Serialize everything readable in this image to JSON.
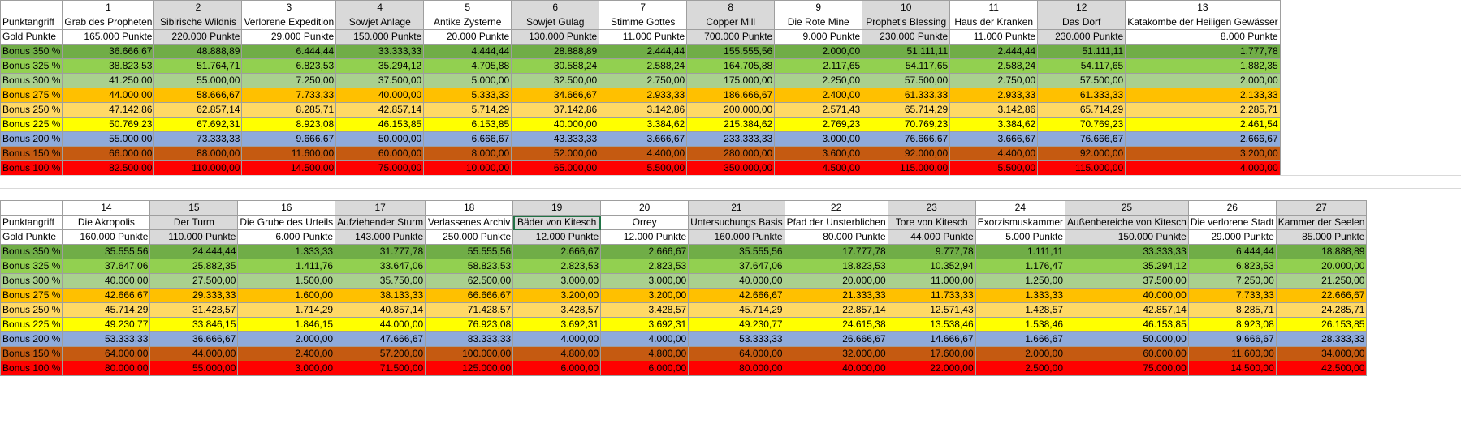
{
  "bonus_colors": {
    "350": "#70ad47",
    "325": "#92d050",
    "300": "#a9d08e",
    "275": "#ffc000",
    "250": "#ffd966",
    "225": "#ffff00",
    "200": "#8eaadb",
    "150": "#c55a11",
    "100": "#ff0000"
  },
  "row_labels": {
    "attack": "Punktangriff",
    "gold": "Gold Punkte",
    "bonuses": [
      "Bonus 350 %",
      "Bonus 325 %",
      "Bonus 300 %",
      "Bonus 275 %",
      "Bonus 250 %",
      "Bonus 225 %",
      "Bonus 200 %",
      "Bonus 150 %",
      "Bonus 100 %"
    ]
  },
  "tables": [
    {
      "columns": [
        {
          "num": "1",
          "name": "Grab des Propheten",
          "gold": "165.000 Punkte",
          "values": [
            "36.666,67",
            "38.823,53",
            "41.250,00",
            "44.000,00",
            "47.142,86",
            "50.769,23",
            "55.000,00",
            "66.000,00",
            "82.500,00"
          ]
        },
        {
          "num": "2",
          "name": "Sibirische Wildnis",
          "gold": "220.000 Punkte",
          "values": [
            "48.888,89",
            "51.764,71",
            "55.000,00",
            "58.666,67",
            "62.857,14",
            "67.692,31",
            "73.333,33",
            "88.000,00",
            "110.000,00"
          ]
        },
        {
          "num": "3",
          "name": "Verlorene Expedition",
          "gold": "29.000 Punkte",
          "values": [
            "6.444,44",
            "6.823,53",
            "7.250,00",
            "7.733,33",
            "8.285,71",
            "8.923,08",
            "9.666,67",
            "11.600,00",
            "14.500,00"
          ]
        },
        {
          "num": "4",
          "name": "Sowjet Anlage",
          "gold": "150.000 Punkte",
          "values": [
            "33.333,33",
            "35.294,12",
            "37.500,00",
            "40.000,00",
            "42.857,14",
            "46.153,85",
            "50.000,00",
            "60.000,00",
            "75.000,00"
          ]
        },
        {
          "num": "5",
          "name": "Antike Zysterne",
          "gold": "20.000 Punkte",
          "values": [
            "4.444,44",
            "4.705,88",
            "5.000,00",
            "5.333,33",
            "5.714,29",
            "6.153,85",
            "6.666,67",
            "8.000,00",
            "10.000,00"
          ]
        },
        {
          "num": "6",
          "name": "Sowjet Gulag",
          "gold": "130.000 Punkte",
          "values": [
            "28.888,89",
            "30.588,24",
            "32.500,00",
            "34.666,67",
            "37.142,86",
            "40.000,00",
            "43.333,33",
            "52.000,00",
            "65.000,00"
          ]
        },
        {
          "num": "7",
          "name": "Stimme Gottes",
          "gold": "11.000 Punkte",
          "values": [
            "2.444,44",
            "2.588,24",
            "2.750,00",
            "2.933,33",
            "3.142,86",
            "3.384,62",
            "3.666,67",
            "4.400,00",
            "5.500,00"
          ]
        },
        {
          "num": "8",
          "name": "Copper Mill",
          "gold": "700.000 Punkte",
          "values": [
            "155.555,56",
            "164.705,88",
            "175.000,00",
            "186.666,67",
            "200.000,00",
            "215.384,62",
            "233.333,33",
            "280.000,00",
            "350.000,00"
          ]
        },
        {
          "num": "9",
          "name": "Die Rote Mine",
          "gold": "9.000 Punkte",
          "values": [
            "2.000,00",
            "2.117,65",
            "2.250,00",
            "2.400,00",
            "2.571,43",
            "2.769,23",
            "3.000,00",
            "3.600,00",
            "4.500,00"
          ]
        },
        {
          "num": "10",
          "name": "Prophet's Blessing",
          "gold": "230.000 Punkte",
          "values": [
            "51.111,11",
            "54.117,65",
            "57.500,00",
            "61.333,33",
            "65.714,29",
            "70.769,23",
            "76.666,67",
            "92.000,00",
            "115.000,00"
          ]
        },
        {
          "num": "11",
          "name": "Haus der Kranken",
          "gold": "11.000 Punkte",
          "values": [
            "2.444,44",
            "2.588,24",
            "2.750,00",
            "2.933,33",
            "3.142,86",
            "3.384,62",
            "3.666,67",
            "4.400,00",
            "5.500,00"
          ]
        },
        {
          "num": "12",
          "name": "Das Dorf",
          "gold": "230.000 Punkte",
          "values": [
            "51.111,11",
            "54.117,65",
            "57.500,00",
            "61.333,33",
            "65.714,29",
            "70.769,23",
            "76.666,67",
            "92.000,00",
            "115.000,00"
          ]
        },
        {
          "num": "13",
          "name": "Katakombe der Heiligen Gewässer",
          "gold": "8.000 Punkte",
          "values": [
            "1.777,78",
            "1.882,35",
            "2.000,00",
            "2.133,33",
            "2.285,71",
            "2.461,54",
            "2.666,67",
            "3.200,00",
            "4.000,00"
          ]
        }
      ]
    },
    {
      "columns": [
        {
          "num": "14",
          "name": "Die Akropolis",
          "gold": "160.000 Punkte",
          "values": [
            "35.555,56",
            "37.647,06",
            "40.000,00",
            "42.666,67",
            "45.714,29",
            "49.230,77",
            "53.333,33",
            "64.000,00",
            "80.000,00"
          ]
        },
        {
          "num": "15",
          "name": "Der Turm",
          "gold": "110.000 Punkte",
          "values": [
            "24.444,44",
            "25.882,35",
            "27.500,00",
            "29.333,33",
            "31.428,57",
            "33.846,15",
            "36.666,67",
            "44.000,00",
            "55.000,00"
          ]
        },
        {
          "num": "16",
          "name": "Die Grube des Urteils",
          "gold": "6.000 Punkte",
          "values": [
            "1.333,33",
            "1.411,76",
            "1.500,00",
            "1.600,00",
            "1.714,29",
            "1.846,15",
            "2.000,00",
            "2.400,00",
            "3.000,00"
          ]
        },
        {
          "num": "17",
          "name": "Aufziehender Sturm",
          "gold": "143.000 Punkte",
          "values": [
            "31.777,78",
            "33.647,06",
            "35.750,00",
            "38.133,33",
            "40.857,14",
            "44.000,00",
            "47.666,67",
            "57.200,00",
            "71.500,00"
          ]
        },
        {
          "num": "18",
          "name": "Verlassenes Archiv",
          "gold": "250.000 Punkte",
          "values": [
            "55.555,56",
            "58.823,53",
            "62.500,00",
            "66.666,67",
            "71.428,57",
            "76.923,08",
            "83.333,33",
            "100.000,00",
            "125.000,00"
          ]
        },
        {
          "num": "19",
          "name": "Bäder von Kitesch",
          "gold": "12.000 Punkte",
          "values": [
            "2.666,67",
            "2.823,53",
            "3.000,00",
            "3.200,00",
            "3.428,57",
            "3.692,31",
            "4.000,00",
            "4.800,00",
            "6.000,00"
          ]
        },
        {
          "num": "20",
          "name": "Orrey",
          "gold": "12.000 Punkte",
          "values": [
            "2.666,67",
            "2.823,53",
            "3.000,00",
            "3.200,00",
            "3.428,57",
            "3.692,31",
            "4.000,00",
            "4.800,00",
            "6.000,00"
          ]
        },
        {
          "num": "21",
          "name": "Untersuchungs Basis",
          "gold": "160.000 Punkte",
          "values": [
            "35.555,56",
            "37.647,06",
            "40.000,00",
            "42.666,67",
            "45.714,29",
            "49.230,77",
            "53.333,33",
            "64.000,00",
            "80.000,00"
          ]
        },
        {
          "num": "22",
          "name": "Pfad der Unsterblichen",
          "gold": "80.000 Punkte",
          "values": [
            "17.777,78",
            "18.823,53",
            "20.000,00",
            "21.333,33",
            "22.857,14",
            "24.615,38",
            "26.666,67",
            "32.000,00",
            "40.000,00"
          ]
        },
        {
          "num": "23",
          "name": "Tore von Kitesch",
          "gold": "44.000 Punkte",
          "values": [
            "9.777,78",
            "10.352,94",
            "11.000,00",
            "11.733,33",
            "12.571,43",
            "13.538,46",
            "14.666,67",
            "17.600,00",
            "22.000,00"
          ]
        },
        {
          "num": "24",
          "name": "Exorzismuskammer",
          "gold": "5.000 Punkte",
          "values": [
            "1.111,11",
            "1.176,47",
            "1.250,00",
            "1.333,33",
            "1.428,57",
            "1.538,46",
            "1.666,67",
            "2.000,00",
            "2.500,00"
          ]
        },
        {
          "num": "25",
          "name": "Außenbereiche von Kitesch",
          "gold": "150.000 Punkte",
          "values": [
            "33.333,33",
            "35.294,12",
            "37.500,00",
            "40.000,00",
            "42.857,14",
            "46.153,85",
            "50.000,00",
            "60.000,00",
            "75.000,00"
          ]
        },
        {
          "num": "26",
          "name": "Die verlorene Stadt",
          "gold": "29.000 Punkte",
          "values": [
            "6.444,44",
            "6.823,53",
            "7.250,00",
            "7.733,33",
            "8.285,71",
            "8.923,08",
            "9.666,67",
            "11.600,00",
            "14.500,00"
          ]
        },
        {
          "num": "27",
          "name": "Kammer der Seelen",
          "gold": "85.000 Punkte",
          "values": [
            "18.888,89",
            "20.000,00",
            "21.250,00",
            "22.666,67",
            "24.285,71",
            "26.153,85",
            "28.333,33",
            "34.000,00",
            "42.500,00"
          ]
        }
      ]
    }
  ]
}
